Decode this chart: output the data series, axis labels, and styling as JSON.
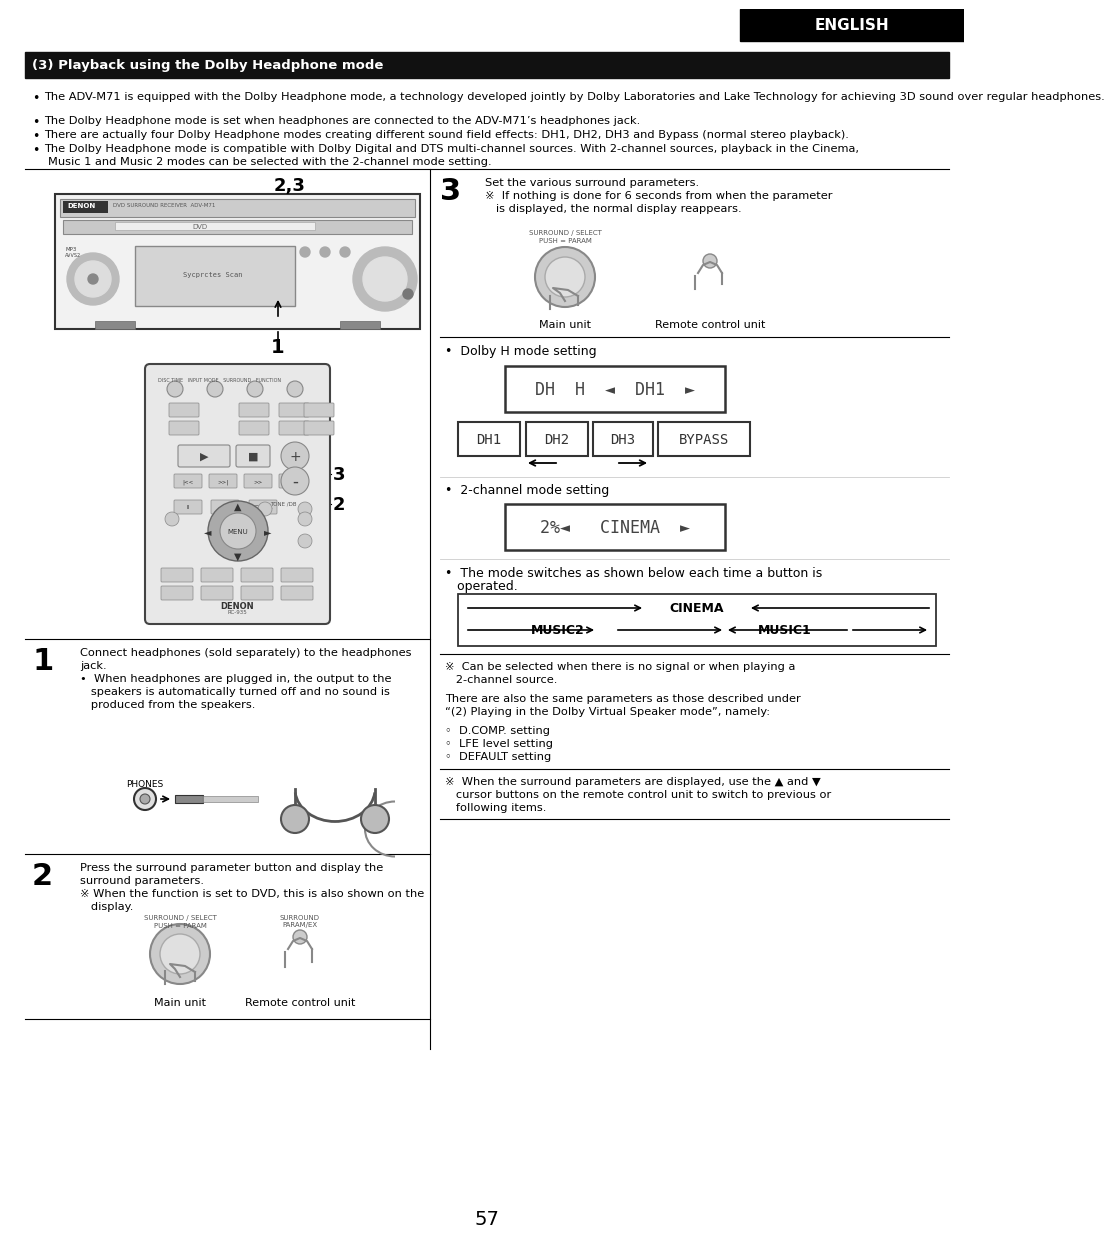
{
  "page_bg": "#ffffff",
  "header_bg": "#000000",
  "header_text": "ENGLISH",
  "header_text_color": "#ffffff",
  "section_header_bg": "#1a1a1a",
  "section_header_text": "(3) Playback using the Dolby Headphone mode",
  "section_header_text_color": "#ffffff",
  "bullet_points": [
    "The ADV-M71 is equipped with the Dolby Headphone mode, a technology developed jointly by Dolby Laboratories and Lake Technology for achieving 3D sound over regular headphones.",
    "The Dolby Headphone mode is set when headphones are connected to the ADV-M71’s headphones jack.",
    "There are actually four Dolby Headphone modes creating different sound field effects: DH1, DH2, DH3 and Bypass (normal stereo playback).",
    "The Dolby Headphone mode is compatible with Dolby Digital and DTS multi-channel sources. With 2-channel sources, playback in the Cinema,\n    Music 1 and Music 2 modes can be selected with the 2-channel mode setting."
  ],
  "step1_num": "1",
  "step1_line1": "Connect headphones (sold separately) to the headphones",
  "step1_line2": "jack.",
  "step1_line3": "•  When headphones are plugged in, the output to the",
  "step1_line4": "   speakers is automatically turned off and no sound is",
  "step1_line5": "   produced from the speakers.",
  "step2_num": "2",
  "step2_line1": "Press the surround parameter button and display the",
  "step2_line2": "surround parameters.",
  "step2_line3": "※ When the function is set to DVD, this is also shown on the",
  "step2_line4": "   display.",
  "step3_num": "3",
  "step3_line1": "Set the various surround parameters.",
  "step3_line2": "※  If nothing is done for 6 seconds from when the parameter",
  "step3_line3": "   is displayed, the normal display reappears.",
  "dolby_h_label": "•  Dolby H mode setting",
  "display_line1": "DH  H  ◄  DH1  ►",
  "display_boxes": [
    "DH1",
    "DH2",
    "DH3",
    "BYPASS"
  ],
  "channel_label": "•  2-channel mode setting",
  "display_line2": "2%◄   CINEMA  ►",
  "mode_switch_label1": "•  The mode switches as shown below each time a button is",
  "mode_switch_label2": "   operated.",
  "cinema_label": "CINEMA",
  "music2_label": "MUSIC2",
  "music1_label": "MUSIC1",
  "note1a": "※  Can be selected when there is no signal or when playing a",
  "note1b": "   2-channel source.",
  "note2a": "There are also the same parameters as those described under",
  "note2b": "“(2) Playing in the Dolby Virtual Speaker mode”, namely:",
  "sub_b1": "◦  D.COMP. setting",
  "sub_b2": "◦  LFE level setting",
  "sub_b3": "◦  DEFAULT setting",
  "bottom_note1": "※  When the surround parameters are displayed, use the ▲ and ▼",
  "bottom_note2": "   cursor buttons on the remote control unit to switch to previous or",
  "bottom_note3": "   following items.",
  "main_unit_label": "Main unit",
  "remote_label": "Remote control unit",
  "step2_main_label": "Main unit",
  "step2_remote_label": "Remote control unit",
  "phones_label": "PHONES",
  "page_number": "57",
  "label_23": "2,3",
  "label_1": "1",
  "label_3": "3",
  "label_2": "2"
}
